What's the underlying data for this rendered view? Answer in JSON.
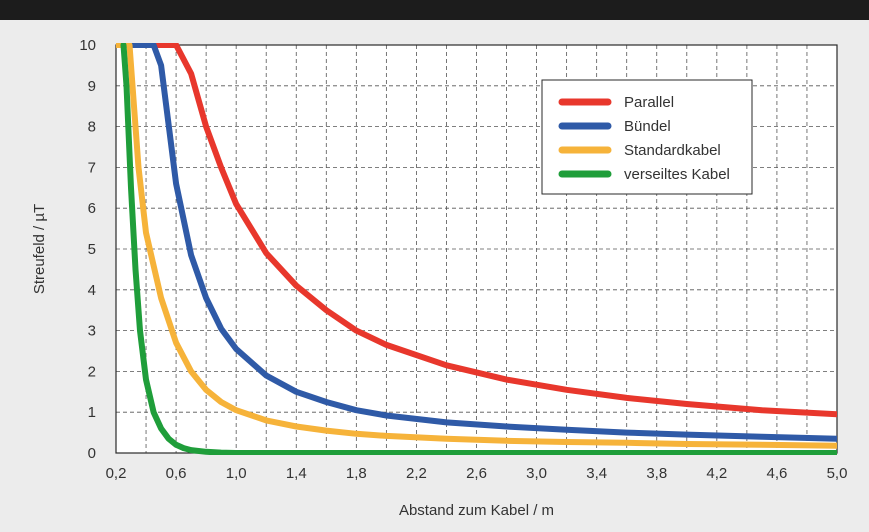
{
  "chart_data": {
    "type": "line",
    "title": "",
    "xlabel": "Abstand zum Kabel / m",
    "ylabel": "Streufeld / µT",
    "xlim": [
      0.2,
      5.0
    ],
    "ylim": [
      0,
      10
    ],
    "xticks": [
      0.2,
      0.6,
      1.0,
      1.4,
      1.8,
      2.2,
      2.6,
      3.0,
      3.4,
      3.8,
      4.2,
      4.6,
      5.0
    ],
    "xtick_labels": [
      "0,2",
      "0,6",
      "1,0",
      "1,4",
      "1,8",
      "2,2",
      "2,6",
      "3,0",
      "3,4",
      "3,8",
      "4,2",
      "4,6",
      "5,0"
    ],
    "yticks": [
      0,
      1,
      2,
      3,
      4,
      5,
      6,
      7,
      8,
      9,
      10
    ],
    "ytick_labels": [
      "0",
      "1",
      "2",
      "3",
      "4",
      "5",
      "6",
      "7",
      "8",
      "9",
      "10"
    ],
    "grid": true,
    "legend_position": "top-right",
    "series": [
      {
        "name": "Parallel",
        "color": "#e8372c",
        "x": [
          0.48,
          0.55,
          0.6,
          0.7,
          0.8,
          0.9,
          1.0,
          1.2,
          1.4,
          1.6,
          1.8,
          2.0,
          2.4,
          2.8,
          3.2,
          3.6,
          4.0,
          4.5,
          5.0
        ],
        "y": [
          10.0,
          10.0,
          10.0,
          9.3,
          8.0,
          7.0,
          6.1,
          4.9,
          4.1,
          3.5,
          3.0,
          2.65,
          2.15,
          1.8,
          1.55,
          1.35,
          1.2,
          1.05,
          0.95
        ]
      },
      {
        "name": "Bündel",
        "color": "#2f5aa7",
        "x": [
          0.29,
          0.35,
          0.4,
          0.45,
          0.5,
          0.6,
          0.7,
          0.8,
          0.9,
          1.0,
          1.2,
          1.4,
          1.6,
          1.8,
          2.0,
          2.4,
          2.8,
          3.2,
          3.6,
          4.0,
          4.5,
          5.0
        ],
        "y": [
          10.0,
          10.0,
          10.0,
          10.0,
          9.5,
          6.6,
          4.85,
          3.8,
          3.05,
          2.55,
          1.9,
          1.5,
          1.25,
          1.05,
          0.92,
          0.75,
          0.65,
          0.57,
          0.5,
          0.45,
          0.4,
          0.35
        ]
      },
      {
        "name": "Standardkabel",
        "color": "#f6b33a",
        "x": [
          0.2,
          0.25,
          0.29,
          0.3,
          0.35,
          0.4,
          0.5,
          0.6,
          0.7,
          0.8,
          0.9,
          1.0,
          1.2,
          1.4,
          1.6,
          1.8,
          2.0,
          2.4,
          2.8,
          3.2,
          3.6,
          4.0,
          4.5,
          5.0
        ],
        "y": [
          10.0,
          10.0,
          10.0,
          9.5,
          7.0,
          5.4,
          3.8,
          2.7,
          2.0,
          1.55,
          1.25,
          1.05,
          0.8,
          0.65,
          0.55,
          0.47,
          0.42,
          0.35,
          0.3,
          0.27,
          0.25,
          0.22,
          0.2,
          0.18
        ]
      },
      {
        "name": "verseiltes Kabel",
        "color": "#1f9e3a",
        "x": [
          0.25,
          0.27,
          0.3,
          0.33,
          0.36,
          0.4,
          0.45,
          0.5,
          0.55,
          0.6,
          0.65,
          0.7,
          0.8,
          0.9,
          1.0,
          1.5,
          2.0,
          3.0,
          4.0,
          5.0
        ],
        "y": [
          10.0,
          9.0,
          6.5,
          4.5,
          3.0,
          1.8,
          1.0,
          0.6,
          0.35,
          0.2,
          0.12,
          0.07,
          0.03,
          0.01,
          0.0,
          0.0,
          0.0,
          0.0,
          0.0,
          0.0
        ]
      }
    ]
  }
}
